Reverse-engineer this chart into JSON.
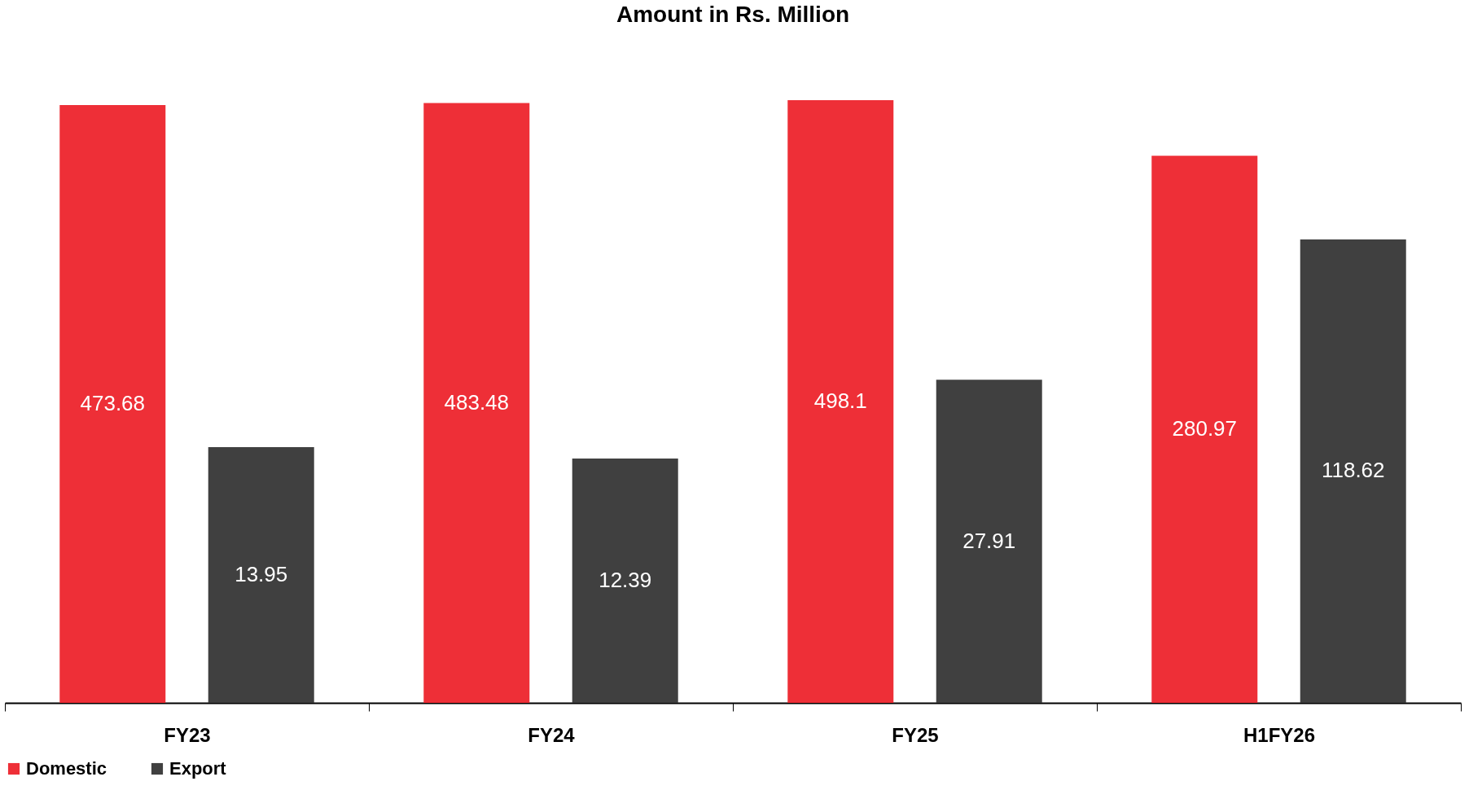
{
  "chart_data": {
    "type": "bar",
    "title": "Amount in Rs. Million",
    "categories": [
      "FY23",
      "FY24",
      "FY25",
      "H1FY26"
    ],
    "series": [
      {
        "name": "Domestic",
        "color": "#ee2f37",
        "values": [
          473.68,
          483.48,
          498.1,
          280.97
        ]
      },
      {
        "name": "Export",
        "color": "#404040",
        "values": [
          13.95,
          12.39,
          27.91,
          118.62
        ]
      }
    ],
    "log": true,
    "ylim": [
      1,
      498.1
    ],
    "tick_labels": "x",
    "data_labels": true,
    "legend": "bottom",
    "grid": false
  }
}
